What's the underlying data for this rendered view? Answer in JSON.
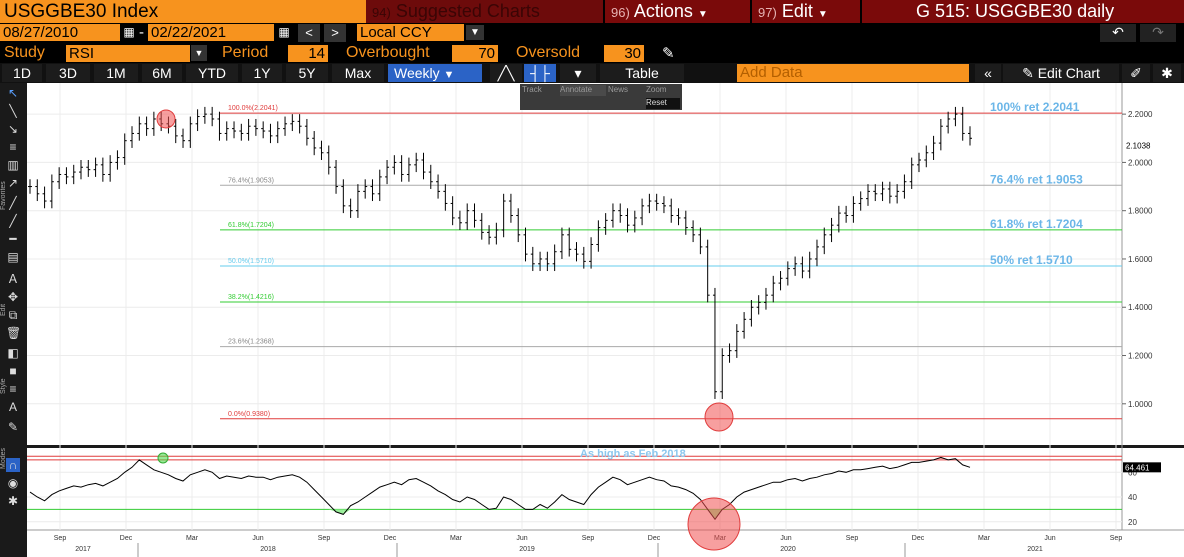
{
  "header": {
    "ticker": "USGGBE30 Index",
    "suggested_num": "94)",
    "suggested_label": "Suggested Charts",
    "actions_num": "96)",
    "actions_label": "Actions",
    "edit_num": "97)",
    "edit_label": "Edit",
    "title": "G 515: USGGBE30 daily"
  },
  "dates": {
    "start": "08/27/2010",
    "end": "02/22/2021",
    "currency": "Local CCY"
  },
  "study": {
    "study_label": "Study",
    "study_value": "RSI",
    "period_label": "Period",
    "period_value": "14",
    "overbought_label": "Overbought",
    "overbought_value": "70",
    "oversold_label": "Oversold",
    "oversold_value": "30"
  },
  "toolbar": {
    "ranges": [
      "1D",
      "3D",
      "1M",
      "6M",
      "YTD",
      "1Y",
      "5Y",
      "Max"
    ],
    "frequency": "Weekly",
    "table_label": "Table",
    "add_data_placeholder": "Add Data",
    "edit_chart_label": "Edit Chart"
  },
  "mini_toolbar": {
    "track": "Track",
    "annotate": "Annotate",
    "news": "News",
    "zoom": "Zoom",
    "reset": "Reset"
  },
  "side_labels": {
    "favorites": "Favorites",
    "edit": "Edit",
    "style": "Style",
    "modes": "Modes"
  },
  "colors": {
    "orange": "#f7931e",
    "red": "#7a0a0a",
    "fib_blue": "#6bb6e8",
    "rsi_green": "#00cc00"
  },
  "chart_data": [
    {
      "type": "line",
      "title": "",
      "x_axis_months": [
        "Sep",
        "Dec",
        "Mar",
        "Jun",
        "Sep",
        "Dec",
        "Mar",
        "Jun",
        "Sep",
        "Dec",
        "Mar",
        "Jun",
        "Sep",
        "Dec",
        "Mar",
        "Jun",
        "Sep"
      ],
      "x_axis_years": [
        "2017",
        "2018",
        "2019",
        "2020",
        "2021"
      ],
      "y_ticks": [
        "2.2000",
        "2.0000",
        "1.8000",
        "1.6000",
        "1.4000",
        "1.2000",
        "1.0000"
      ],
      "ylim": [
        0.85,
        2.3
      ],
      "last_value": "2.1038",
      "fib_levels": [
        {
          "level": "100.0%",
          "value": 2.2041,
          "label": "100.0%(2.2041)",
          "right_label": "100% ret 2.2041",
          "color": "#e03c3c"
        },
        {
          "level": "76.4%",
          "value": 1.9053,
          "label": "76.4%(1.9053)",
          "right_label": "76.4% ret 1.9053",
          "color": "#aaaaaa"
        },
        {
          "level": "61.8%",
          "value": 1.7204,
          "label": "61.8%(1.7204)",
          "right_label": "61.8% ret 1.7204",
          "color": "#33cc33"
        },
        {
          "level": "50.0%",
          "value": 1.571,
          "label": "50.0%(1.5710)",
          "right_label": "50% ret 1.5710",
          "color": "#66ccee"
        },
        {
          "level": "38.2%",
          "value": 1.4216,
          "label": "38.2%(1.4216)",
          "right_label": "",
          "color": "#33cc33"
        },
        {
          "level": "23.6%",
          "value": 1.2368,
          "label": "23.6%(1.2368)",
          "right_label": "",
          "color": "#aaaaaa"
        },
        {
          "level": "0.0%",
          "value": 0.938,
          "label": "0.0%(0.9380)",
          "right_label": "",
          "color": "#e03c3c"
        }
      ],
      "series": [
        {
          "values": [
            1.9,
            1.87,
            1.84,
            1.92,
            1.95,
            1.94,
            1.96,
            1.98,
            1.97,
            1.99,
            1.95,
            2.0,
            2.02,
            2.09,
            2.12,
            2.16,
            2.14,
            2.18,
            2.16,
            2.15,
            2.11,
            2.09,
            2.16,
            2.19,
            2.2,
            2.18,
            2.12,
            2.14,
            2.13,
            2.12,
            2.15,
            2.14,
            2.13,
            2.11,
            2.14,
            2.16,
            2.17,
            2.15,
            2.1,
            2.06,
            2.04,
            1.98,
            1.9,
            1.82,
            1.8,
            1.88,
            1.9,
            1.87,
            1.94,
            1.98,
            2.0,
            1.95,
            1.99,
            2.01,
            1.96,
            1.92,
            1.88,
            1.83,
            1.77,
            1.75,
            1.8,
            1.76,
            1.71,
            1.69,
            1.72,
            1.84,
            1.78,
            1.7,
            1.62,
            1.58,
            1.6,
            1.58,
            1.63,
            1.7,
            1.64,
            1.62,
            1.59,
            1.66,
            1.73,
            1.76,
            1.8,
            1.78,
            1.74,
            1.77,
            1.82,
            1.84,
            1.83,
            1.82,
            1.78,
            1.77,
            1.73,
            1.7,
            1.65,
            1.45,
            1.05,
            1.2,
            1.22,
            1.3,
            1.35,
            1.4,
            1.42,
            1.45,
            1.5,
            1.52,
            1.56,
            1.58,
            1.55,
            1.6,
            1.65,
            1.7,
            1.74,
            1.79,
            1.78,
            1.83,
            1.85,
            1.88,
            1.87,
            1.89,
            1.86,
            1.88,
            1.92,
            1.99,
            2.01,
            2.04,
            2.08,
            2.15,
            2.18,
            2.2,
            2.12,
            2.1
          ]
        }
      ]
    },
    {
      "type": "line",
      "title": "",
      "annotation": "As high as Feb 2018",
      "y_ticks": [
        "60",
        "40",
        "20"
      ],
      "ylim": [
        15,
        78
      ],
      "overbought": 70,
      "oversold": 30,
      "last_value": "64.461",
      "series": [
        {
          "values": [
            44,
            40,
            37,
            42,
            45,
            47,
            49,
            48,
            50,
            51,
            49,
            52,
            55,
            60,
            64,
            70,
            66,
            62,
            60,
            58,
            55,
            53,
            58,
            60,
            62,
            60,
            55,
            57,
            56,
            55,
            57,
            56,
            56,
            54,
            56,
            57,
            58,
            56,
            52,
            46,
            40,
            34,
            28,
            26,
            33,
            36,
            40,
            44,
            48,
            50,
            52,
            50,
            54,
            55,
            52,
            49,
            45,
            42,
            38,
            36,
            40,
            38,
            34,
            30,
            31,
            40,
            38,
            34,
            30,
            30,
            34,
            31,
            36,
            42,
            38,
            36,
            34,
            42,
            48,
            52,
            56,
            54,
            50,
            52,
            54,
            56,
            54,
            53,
            49,
            48,
            46,
            43,
            38,
            30,
            22,
            30,
            34,
            40,
            44,
            46,
            48,
            50,
            52,
            52,
            54,
            55,
            53,
            55,
            56,
            58,
            59,
            61,
            60,
            62,
            62,
            63,
            64,
            65,
            63,
            64,
            66,
            68,
            68,
            69,
            70,
            72,
            70,
            71,
            66,
            64
          ]
        }
      ]
    }
  ]
}
